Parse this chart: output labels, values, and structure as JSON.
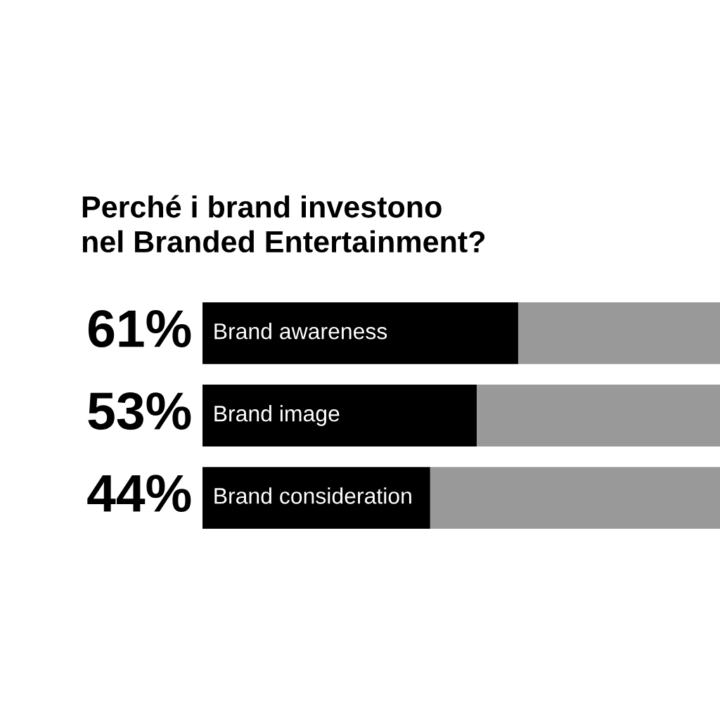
{
  "chart_data": {
    "type": "bar",
    "orientation": "horizontal",
    "stacked": true,
    "title": "Perché i brand investono\nnel Branded Entertainment?",
    "categories": [
      "Brand awareness",
      "Brand image",
      "Brand consideration"
    ],
    "series": [
      {
        "color": "#000000",
        "values": [
          61,
          53,
          44
        ],
        "value_labels": [
          "61%",
          "53%",
          "44%"
        ]
      },
      {
        "color": "#999999",
        "values": [
          39,
          47,
          56
        ]
      }
    ],
    "xlim": [
      0,
      100
    ]
  }
}
